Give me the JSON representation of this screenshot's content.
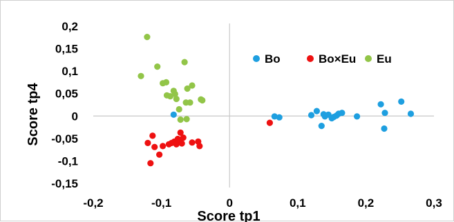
{
  "chart_data": {
    "type": "scatter",
    "title": "",
    "xlabel": "Score tp1",
    "ylabel": "Score tp4",
    "xlim": [
      -0.2,
      0.3
    ],
    "ylim": [
      -0.15,
      0.2
    ],
    "x_ticks": [
      "-0,2",
      "-0,1",
      "0",
      "0,1",
      "0,2",
      "0,3"
    ],
    "x_tick_values": [
      -0.2,
      -0.1,
      0,
      0.1,
      0.2,
      0.3
    ],
    "y_ticks": [
      "0,2",
      "0,15",
      "0,1",
      "0,05",
      "0",
      "-0,05",
      "-0,1",
      "-0,15"
    ],
    "y_tick_values": [
      0.2,
      0.15,
      0.1,
      0.05,
      0,
      -0.05,
      -0.1,
      -0.15
    ],
    "grid": false,
    "zero_lines": true,
    "legend_position": "top-right",
    "series": [
      {
        "name": "Bo",
        "color": "#1e9fe0",
        "points": [
          {
            "x": -0.082,
            "y": 0.003
          },
          {
            "x": 0.066,
            "y": -0.001
          },
          {
            "x": 0.073,
            "y": -0.003
          },
          {
            "x": 0.12,
            "y": 0.002
          },
          {
            "x": 0.128,
            "y": 0.011
          },
          {
            "x": 0.135,
            "y": -0.022
          },
          {
            "x": 0.138,
            "y": 0.004
          },
          {
            "x": 0.14,
            "y": -0.001
          },
          {
            "x": 0.145,
            "y": 0.003
          },
          {
            "x": 0.15,
            "y": -0.005
          },
          {
            "x": 0.153,
            "y": -0.002
          },
          {
            "x": 0.157,
            "y": 0.001
          },
          {
            "x": 0.16,
            "y": 0.005
          },
          {
            "x": 0.165,
            "y": 0.007
          },
          {
            "x": 0.187,
            "y": -0.001
          },
          {
            "x": 0.222,
            "y": 0.026
          },
          {
            "x": 0.228,
            "y": 0.007
          },
          {
            "x": 0.227,
            "y": -0.028
          },
          {
            "x": 0.252,
            "y": 0.032
          },
          {
            "x": 0.266,
            "y": 0.005
          }
        ]
      },
      {
        "name": "Bo×Eu",
        "color": "#ee1111",
        "points": [
          {
            "x": 0.059,
            "y": -0.015
          },
          {
            "x": -0.12,
            "y": -0.06
          },
          {
            "x": -0.116,
            "y": -0.105
          },
          {
            "x": -0.113,
            "y": -0.044
          },
          {
            "x": -0.11,
            "y": -0.069
          },
          {
            "x": -0.103,
            "y": -0.086
          },
          {
            "x": -0.098,
            "y": -0.067
          },
          {
            "x": -0.089,
            "y": -0.063
          },
          {
            "x": -0.085,
            "y": -0.06
          },
          {
            "x": -0.081,
            "y": -0.057
          },
          {
            "x": -0.078,
            "y": -0.063
          },
          {
            "x": -0.076,
            "y": -0.051
          },
          {
            "x": -0.074,
            "y": -0.055
          },
          {
            "x": -0.072,
            "y": -0.037
          },
          {
            "x": -0.07,
            "y": -0.061
          },
          {
            "x": -0.068,
            "y": -0.048
          },
          {
            "x": -0.055,
            "y": -0.059
          },
          {
            "x": -0.046,
            "y": -0.057
          },
          {
            "x": -0.044,
            "y": -0.067
          }
        ]
      },
      {
        "name": "Eu",
        "color": "#92c548",
        "points": [
          {
            "x": -0.121,
            "y": 0.176
          },
          {
            "x": -0.13,
            "y": 0.089
          },
          {
            "x": -0.106,
            "y": 0.11
          },
          {
            "x": -0.098,
            "y": 0.073
          },
          {
            "x": -0.093,
            "y": 0.075
          },
          {
            "x": -0.092,
            "y": 0.046
          },
          {
            "x": -0.087,
            "y": 0.044
          },
          {
            "x": -0.082,
            "y": 0.056
          },
          {
            "x": -0.08,
            "y": 0.049
          },
          {
            "x": -0.078,
            "y": 0.038
          },
          {
            "x": -0.074,
            "y": 0.015
          },
          {
            "x": -0.072,
            "y": -0.008
          },
          {
            "x": -0.066,
            "y": 0.12
          },
          {
            "x": -0.064,
            "y": 0.03
          },
          {
            "x": -0.063,
            "y": -0.007
          },
          {
            "x": -0.062,
            "y": 0.061
          },
          {
            "x": -0.058,
            "y": 0.03
          },
          {
            "x": -0.055,
            "y": 0.068
          },
          {
            "x": -0.042,
            "y": 0.037
          },
          {
            "x": -0.04,
            "y": 0.035
          }
        ]
      }
    ]
  }
}
